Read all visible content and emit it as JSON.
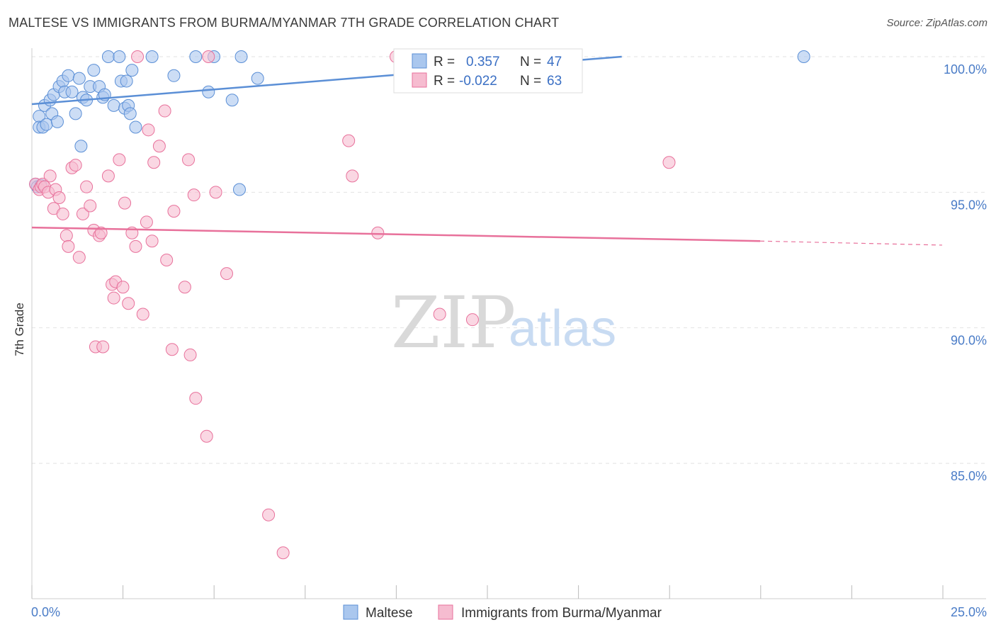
{
  "title": "MALTESE VS IMMIGRANTS FROM BURMA/MYANMAR 7TH GRADE CORRELATION CHART",
  "source": "Source: ZipAtlas.com",
  "watermark": {
    "zip": "ZIP",
    "atlas": "atlas"
  },
  "chart_data": {
    "type": "scatter",
    "ylabel": "7th Grade",
    "xlim": [
      0,
      25
    ],
    "ylim": [
      80.5,
      100.8
    ],
    "x_tick_labels": [
      {
        "value": 0,
        "label": "0.0%"
      },
      {
        "value": 25,
        "label": "25.0%"
      }
    ],
    "y_ticks": [
      {
        "value": 100,
        "label": "100.0%"
      },
      {
        "value": 95,
        "label": "95.0%"
      },
      {
        "value": 90,
        "label": "90.0%"
      },
      {
        "value": 85,
        "label": "85.0%"
      }
    ],
    "legend": [
      {
        "r_label": "R =",
        "r_value": "0.357",
        "n_label": "N =",
        "n_value": "47"
      },
      {
        "r_label": "R =",
        "r_value": "-0.022",
        "n_label": "N =",
        "n_value": "63"
      }
    ],
    "series": [
      {
        "name": "Maltese",
        "color": "#5b8fd6",
        "fill": "#aac7ee",
        "trend": {
          "x0": 0,
          "y0": 98.25,
          "x1": 16.2,
          "y1": 100.0,
          "dashed_to": null
        },
        "points": [
          [
            0.2,
            97.8
          ],
          [
            0.2,
            97.4
          ],
          [
            0.3,
            97.4
          ],
          [
            0.35,
            98.2
          ],
          [
            0.4,
            97.5
          ],
          [
            0.5,
            98.4
          ],
          [
            0.55,
            97.9
          ],
          [
            0.6,
            98.6
          ],
          [
            0.7,
            97.6
          ],
          [
            0.75,
            98.9
          ],
          [
            0.85,
            99.1
          ],
          [
            0.9,
            98.7
          ],
          [
            1.0,
            99.3
          ],
          [
            1.1,
            98.7
          ],
          [
            1.2,
            97.9
          ],
          [
            1.3,
            99.2
          ],
          [
            1.35,
            96.7
          ],
          [
            1.4,
            98.5
          ],
          [
            1.5,
            98.4
          ],
          [
            1.6,
            98.9
          ],
          [
            1.7,
            99.5
          ],
          [
            1.85,
            98.9
          ],
          [
            1.95,
            98.5
          ],
          [
            2.0,
            98.6
          ],
          [
            2.1,
            100.0
          ],
          [
            2.25,
            98.2
          ],
          [
            2.4,
            100.0
          ],
          [
            2.45,
            99.1
          ],
          [
            2.55,
            98.1
          ],
          [
            2.6,
            99.1
          ],
          [
            2.65,
            98.2
          ],
          [
            2.7,
            97.9
          ],
          [
            2.75,
            99.5
          ],
          [
            2.85,
            97.4
          ],
          [
            3.3,
            100.0
          ],
          [
            3.9,
            99.3
          ],
          [
            4.5,
            100.0
          ],
          [
            4.85,
            98.7
          ],
          [
            5.0,
            100.0
          ],
          [
            5.5,
            98.4
          ],
          [
            5.7,
            95.1
          ],
          [
            5.75,
            100.0
          ],
          [
            6.2,
            99.2
          ],
          [
            21.2,
            100.0
          ],
          [
            0.1,
            95.3
          ],
          [
            0.15,
            95.2
          ],
          [
            0.25,
            95.25
          ]
        ]
      },
      {
        "name": "Immigrants from Burma/Myanmar",
        "color": "#e8719b",
        "fill": "#f6bcd0",
        "trend": {
          "x0": 0,
          "y0": 93.7,
          "x1": 20.0,
          "y1": 93.2,
          "dashed_to": {
            "x": 25.0,
            "y": 93.05
          }
        },
        "points": [
          [
            0.1,
            95.3
          ],
          [
            0.2,
            95.1
          ],
          [
            0.25,
            95.2
          ],
          [
            0.3,
            95.3
          ],
          [
            0.35,
            95.2
          ],
          [
            0.45,
            95.0
          ],
          [
            0.5,
            95.6
          ],
          [
            0.6,
            94.4
          ],
          [
            0.65,
            95.1
          ],
          [
            0.75,
            94.8
          ],
          [
            0.85,
            94.2
          ],
          [
            0.95,
            93.4
          ],
          [
            1.0,
            93.0
          ],
          [
            1.1,
            95.9
          ],
          [
            1.2,
            96.0
          ],
          [
            1.3,
            92.6
          ],
          [
            1.4,
            94.2
          ],
          [
            1.5,
            95.2
          ],
          [
            1.6,
            94.5
          ],
          [
            1.7,
            93.6
          ],
          [
            1.75,
            89.3
          ],
          [
            1.85,
            93.4
          ],
          [
            1.9,
            93.5
          ],
          [
            1.95,
            89.3
          ],
          [
            2.1,
            95.6
          ],
          [
            2.2,
            91.6
          ],
          [
            2.25,
            91.1
          ],
          [
            2.3,
            91.7
          ],
          [
            2.4,
            96.2
          ],
          [
            2.5,
            91.5
          ],
          [
            2.55,
            94.6
          ],
          [
            2.65,
            90.9
          ],
          [
            2.75,
            93.5
          ],
          [
            2.85,
            93.0
          ],
          [
            2.9,
            100.0
          ],
          [
            3.05,
            90.5
          ],
          [
            3.15,
            93.9
          ],
          [
            3.2,
            97.3
          ],
          [
            3.3,
            93.2
          ],
          [
            3.35,
            96.1
          ],
          [
            3.5,
            96.7
          ],
          [
            3.65,
            98.0
          ],
          [
            3.7,
            92.5
          ],
          [
            3.85,
            89.2
          ],
          [
            3.9,
            94.3
          ],
          [
            4.2,
            91.5
          ],
          [
            4.3,
            96.2
          ],
          [
            4.35,
            89.0
          ],
          [
            4.45,
            94.9
          ],
          [
            4.5,
            87.4
          ],
          [
            4.8,
            86.0
          ],
          [
            4.85,
            100.0
          ],
          [
            5.05,
            95.0
          ],
          [
            5.35,
            92.0
          ],
          [
            6.5,
            83.1
          ],
          [
            6.9,
            81.7
          ],
          [
            8.7,
            96.9
          ],
          [
            8.8,
            95.6
          ],
          [
            9.5,
            93.5
          ],
          [
            10.0,
            100.0
          ],
          [
            11.2,
            90.5
          ],
          [
            12.1,
            90.3
          ],
          [
            17.5,
            96.1
          ]
        ]
      }
    ]
  }
}
